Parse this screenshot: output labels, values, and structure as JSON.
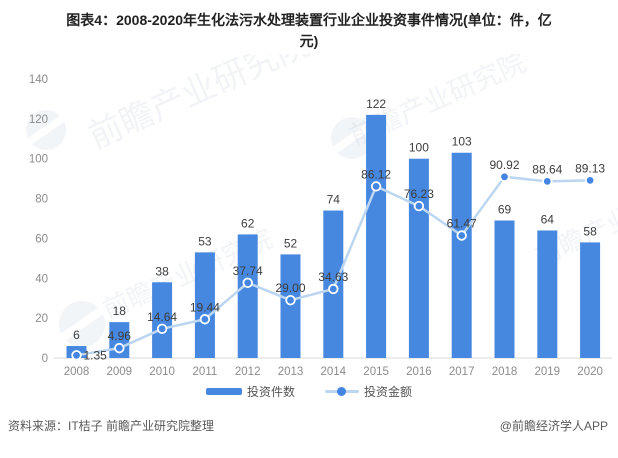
{
  "title": {
    "line1": "图表4：2008-2020年生化法污水处理装置行业企业投资事件情况(单位：件，亿",
    "line2": "元)"
  },
  "chart_data": {
    "type": "combo-bar-line",
    "title": "图表4：2008-2020年生化法污水处理装置行业企业投资事件情况(单位：件，亿元)",
    "categories": [
      "2008",
      "2009",
      "2010",
      "2011",
      "2012",
      "2013",
      "2014",
      "2015",
      "2016",
      "2017",
      "2018",
      "2019",
      "2020"
    ],
    "series": [
      {
        "name": "投资件数",
        "type": "bar",
        "values": [
          6,
          18,
          38,
          53,
          62,
          52,
          74,
          122,
          100,
          103,
          69,
          64,
          58
        ]
      },
      {
        "name": "投资金额",
        "type": "line",
        "values": [
          1.35,
          4.96,
          14.64,
          19.44,
          37.74,
          29.0,
          34.63,
          86.12,
          76.23,
          61.47,
          90.92,
          88.64,
          89.13
        ],
        "labels": [
          "1.35",
          "4.96",
          "14.64",
          "19.44",
          "37.74",
          "29.00",
          "34.63",
          "86.12",
          "76.23",
          "61.47",
          "90.92",
          "88.64",
          "89.13"
        ]
      }
    ],
    "xlabel": "",
    "ylabel": "",
    "ylim": [
      0,
      140
    ],
    "yticks": [
      0,
      20,
      40,
      60,
      80,
      100,
      120,
      140
    ],
    "grid": false,
    "legend_position": "bottom",
    "colors": {
      "bar": "#4687E0",
      "line": "#BCD6F2",
      "marker": "#4285E2",
      "axis": "#D9D9D9",
      "tick_text": "#8C8C8C",
      "data_label": "#3D3D3D"
    }
  },
  "watermark": {
    "text": "前瞻产业研究院"
  },
  "footer": {
    "source": "资料来源：IT桔子 前瞻产业研究院整理",
    "credit": "@前瞻经济学人APP"
  }
}
